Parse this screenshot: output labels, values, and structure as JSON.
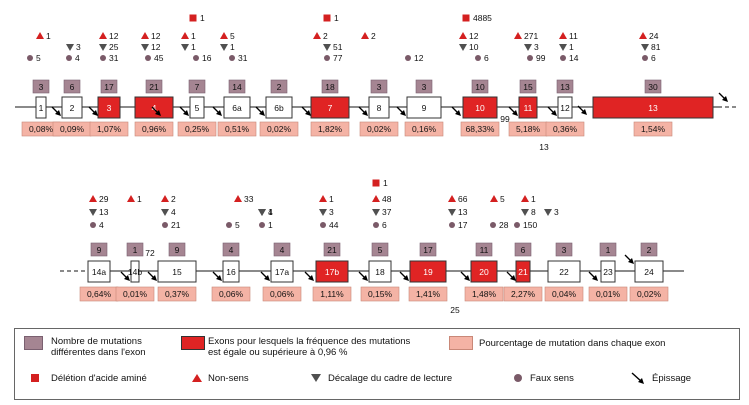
{
  "diagram": {
    "row1": {
      "exons": [
        {
          "label": "1",
          "mutations": "3",
          "percent": "0,08%",
          "filled": false
        },
        {
          "label": "2",
          "mutations": "6",
          "percent": "0,09%",
          "filled": false
        },
        {
          "label": "3",
          "mutations": "17",
          "percent": "1,07%",
          "filled": true
        },
        {
          "label": "4",
          "mutations": "21",
          "percent": "0,96%",
          "filled": true
        },
        {
          "label": "5",
          "mutations": "7",
          "percent": "0,25%",
          "filled": false
        },
        {
          "label": "6a",
          "mutations": "14",
          "percent": "0,51%",
          "filled": false
        },
        {
          "label": "6b",
          "mutations": "2",
          "percent": "0,02%",
          "filled": false
        },
        {
          "label": "7",
          "mutations": "18",
          "percent": "1,82%",
          "filled": true
        },
        {
          "label": "8",
          "mutations": "3",
          "percent": "0,02%",
          "filled": false
        },
        {
          "label": "9",
          "mutations": "3",
          "percent": "0,16%",
          "filled": false
        },
        {
          "label": "10",
          "mutations": "10",
          "percent": "68,33%",
          "filled": true
        },
        {
          "label": "11",
          "mutations": "15",
          "percent": "5,18%",
          "filled": true
        },
        {
          "label": "12",
          "mutations": "13",
          "percent": "0,36%",
          "filled": false
        },
        {
          "label": "13",
          "mutations": "30",
          "percent": "1,54%",
          "filled": true
        }
      ],
      "counts": {
        "deletion": [
          "1",
          "1",
          "4885"
        ],
        "nonsense": [
          "1",
          "12",
          "12",
          "1",
          "5",
          "2",
          "2",
          "12",
          "271",
          "11",
          "24"
        ],
        "frameshift": [
          "3",
          "25",
          "12",
          "1",
          "1",
          "51",
          "10",
          "3",
          "1",
          "81"
        ],
        "missense": [
          "5",
          "4",
          "31",
          "45",
          "16",
          "31",
          "77",
          "12",
          "6",
          "99",
          "14",
          "6"
        ]
      },
      "intron_labels": [
        "99",
        "13"
      ]
    },
    "row2": {
      "exons": [
        {
          "label": "14a",
          "mutations": "9",
          "percent": "0,64%",
          "filled": false
        },
        {
          "label": "14b",
          "mutations": "1",
          "percent": "0,01%",
          "filled": false
        },
        {
          "label": "15",
          "mutations": "9",
          "percent": "0,37%",
          "filled": false
        },
        {
          "label": "16",
          "mutations": "4",
          "percent": "0,06%",
          "filled": false
        },
        {
          "label": "17a",
          "mutations": "4",
          "percent": "0,06%",
          "filled": false
        },
        {
          "label": "17b",
          "mutations": "21",
          "percent": "1,11%",
          "filled": true
        },
        {
          "label": "18",
          "mutations": "5",
          "percent": "0,15%",
          "filled": false
        },
        {
          "label": "19",
          "mutations": "17",
          "percent": "1,41%",
          "filled": true
        },
        {
          "label": "20",
          "mutations": "11",
          "percent": "1,48%",
          "filled": true
        },
        {
          "label": "21",
          "mutations": "6",
          "percent": "2,27%",
          "filled": true
        },
        {
          "label": "22",
          "mutations": "3",
          "percent": "0,04%",
          "filled": false
        },
        {
          "label": "23",
          "mutations": "1",
          "percent": "0,01%",
          "filled": false
        },
        {
          "label": "24",
          "mutations": "2",
          "percent": "0,02%",
          "filled": false
        }
      ],
      "counts": {
        "deletion": [
          "1"
        ],
        "nonsense": [
          "29",
          "1",
          "2",
          "33",
          "1",
          "48",
          "66",
          "5",
          "1"
        ],
        "frameshift": [
          "13",
          "4",
          "4",
          "1",
          "3",
          "37",
          "13",
          "8",
          "3"
        ],
        "missense": [
          "4",
          "21",
          "5",
          "1",
          "44",
          "6",
          "17",
          "28",
          "150"
        ]
      },
      "intron_labels": [
        "72",
        "25"
      ]
    }
  },
  "legend": {
    "mutation_count": "Nombre de mutations\ndifférentes dans l'exon",
    "exon_frequency": "Exons pour lesquels la fréquence des mutations\nest égale ou supérieure à 0,96 %",
    "percent_per_exon": "Pourcentage de mutation dans chaque exon",
    "deletion": "Délétion d'acide aminé",
    "nonsense": "Non-sens",
    "frameshift": "Décalage du cadre de lecture",
    "missense": "Faux sens",
    "splicing": "Épissage"
  },
  "colors": {
    "exon_red": "#e02424",
    "mutation_box": "#a58592",
    "percent_box": "#f4b3a5",
    "deletion": "#d42020",
    "nonsense": "#d42020",
    "frameshift": "#505050",
    "missense": "#7a5a68"
  }
}
